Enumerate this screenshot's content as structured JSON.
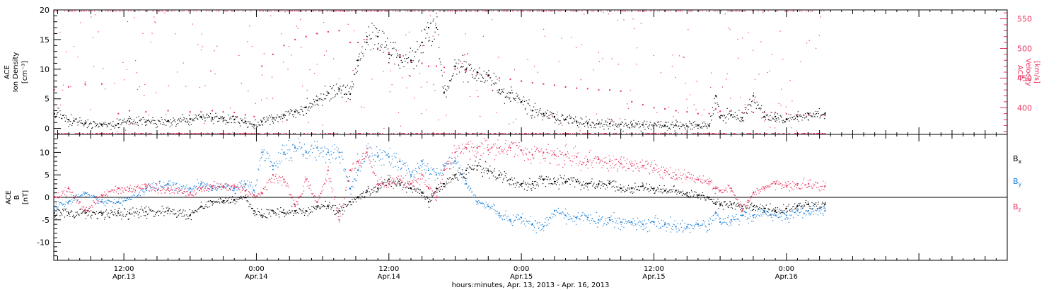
{
  "figure": {
    "xlabel": "hours:minutes, Apr. 13, 2013 - Apr. 16, 2013",
    "time_axis": {
      "unit": "hours since 2013-04-13 00:00",
      "xlim": [
        5.65,
        92.0
      ],
      "major_ticks": [
        {
          "t": 12,
          "time": "12:00",
          "date": "Apr.13"
        },
        {
          "t": 24,
          "time": "0:00",
          "date": "Apr.14"
        },
        {
          "t": 36,
          "time": "12:00",
          "date": "Apr.14"
        },
        {
          "t": 48,
          "time": "0:00",
          "date": "Apr.15"
        },
        {
          "t": 60,
          "time": "12:00",
          "date": "Apr.15"
        },
        {
          "t": 72,
          "time": "0:00",
          "date": "Apr.16"
        }
      ]
    }
  },
  "colors": {
    "black": "#000000",
    "pink": "#e8335f",
    "blue": "#1a7fd9"
  },
  "chart_data": [
    {
      "type": "scatter",
      "panel": "top",
      "ylabel_left": [
        "ACE",
        "Ion Density",
        "[cm⁻³]"
      ],
      "ylabel_right": [
        "ACE",
        "Velocity",
        "[km/s]"
      ],
      "ylim_left": [
        -1,
        20
      ],
      "yticks_left": [
        0,
        5,
        10,
        15,
        20
      ],
      "ylim_right": [
        355,
        565
      ],
      "yticks_right": [
        400,
        450,
        500,
        550
      ],
      "grid": false,
      "series": [
        {
          "name": "",
          "axis": "left",
          "color": "black",
          "x": [
            5.7,
            7,
            8.5,
            10,
            11.5,
            12.5,
            14,
            16,
            18,
            19,
            20,
            21,
            22,
            23,
            23.8,
            24.5,
            25.5,
            26.5,
            27.5,
            28.5,
            29.5,
            30.5,
            31.5,
            32.5,
            33.2,
            34,
            35,
            36,
            37,
            38,
            39,
            39.6,
            40.3,
            41,
            42,
            43,
            44,
            45,
            46,
            47,
            48,
            49,
            50,
            51,
            52,
            53,
            54,
            55,
            56,
            57,
            58,
            59,
            60,
            61,
            62,
            63,
            64,
            65,
            65.6,
            66,
            67,
            68,
            69,
            70,
            71,
            72,
            73,
            74,
            75.5
          ],
          "y": [
            2.5,
            1.5,
            0.9,
            0.7,
            0.8,
            1.2,
            1.1,
            1.2,
            1.6,
            2.0,
            1.8,
            1.7,
            1.5,
            1.2,
            0.6,
            1.2,
            1.8,
            2.3,
            2.8,
            3.6,
            4.7,
            6.0,
            6.6,
            5.8,
            11.5,
            14.5,
            15.5,
            12.5,
            12.0,
            11.5,
            14.5,
            17.0,
            17.0,
            6.0,
            10.5,
            10.0,
            9.5,
            9.0,
            6.5,
            6.0,
            4.5,
            3.0,
            2.5,
            2.0,
            1.5,
            1.2,
            0.9,
            0.8,
            0.8,
            0.7,
            0.6,
            0.6,
            0.5,
            0.5,
            0.5,
            0.4,
            0.5,
            0.5,
            5.5,
            1.8,
            2.3,
            1.8,
            5.5,
            2.0,
            2.0,
            1.5,
            2.0,
            2.5,
            2.5
          ]
        },
        {
          "name": "",
          "axis": "right",
          "color": "pink",
          "x": [
            5.7,
            7,
            8.5,
            10,
            11.5,
            12.5,
            14,
            16,
            18,
            19,
            20,
            21,
            22,
            23,
            23.8,
            24.5,
            25.5,
            26.5,
            27.5,
            28.5,
            29.5,
            30.5,
            31.5,
            32.5,
            33.2,
            34,
            35,
            36,
            37,
            38,
            39,
            39.6,
            40.3,
            41,
            42,
            43,
            44,
            45,
            46,
            47,
            48,
            49,
            50,
            51,
            52,
            53,
            54,
            55,
            56,
            57,
            58,
            59,
            60,
            61,
            62,
            63,
            64,
            65,
            65.6,
            66,
            67,
            68,
            69,
            70,
            71,
            72,
            73,
            74,
            75.5
          ],
          "y": [
            430,
            435,
            440,
            440,
            390,
            395,
            393,
            395,
            393,
            393,
            395,
            393,
            392,
            388,
            385,
            470,
            490,
            505,
            515,
            520,
            525,
            528,
            530,
            510,
            510,
            515,
            500,
            493,
            487,
            478,
            475,
            470,
            470,
            468,
            465,
            462,
            457,
            453,
            450,
            448,
            445,
            442,
            440,
            438,
            435,
            433,
            432,
            430,
            430,
            428,
            410,
            405,
            400,
            398,
            395,
            393,
            390,
            390,
            398,
            394,
            395,
            392,
            392,
            392,
            392,
            390,
            388,
            388,
            387
          ]
        }
      ]
    },
    {
      "type": "scatter",
      "panel": "bottom",
      "ylabel_left": [
        "ACE",
        "B",
        "[nT]"
      ],
      "ylim": [
        -14,
        14
      ],
      "yticks": [
        -10,
        -5,
        0,
        5,
        10
      ],
      "zero_line": 0,
      "grid": false,
      "series": [
        {
          "name": "Bx",
          "color": "black",
          "x": [
            5.7,
            7,
            8.5,
            10,
            11.5,
            12.5,
            14,
            16,
            18,
            19,
            20,
            21,
            22,
            23,
            23.8,
            24.5,
            25.5,
            26.5,
            27.5,
            28.5,
            29.5,
            30.5,
            31.5,
            32.5,
            33.2,
            34,
            35,
            36,
            37,
            38,
            39,
            39.6,
            40.3,
            41,
            42,
            43,
            44,
            45,
            46,
            47,
            48,
            49,
            50,
            51,
            52,
            53,
            54,
            55,
            56,
            57,
            58,
            59,
            60,
            61,
            62,
            63,
            64,
            65,
            65.6,
            66,
            67,
            68,
            69,
            70,
            71,
            72,
            73,
            74,
            75.5
          ],
          "y": [
            -3.5,
            -3.5,
            -3.5,
            -3.5,
            -3.5,
            -3.5,
            -3.2,
            -3.0,
            -4.0,
            -2.0,
            -1.0,
            -0.8,
            -0.5,
            0.0,
            -3.0,
            -4.0,
            -3.0,
            -3.5,
            -3.0,
            -3.0,
            -2.0,
            -2.0,
            -3.0,
            -1.0,
            0.0,
            1.5,
            2.0,
            4.0,
            3.0,
            2.0,
            1.0,
            -1.0,
            2.0,
            3.0,
            5.0,
            6.0,
            7.0,
            6.0,
            5.0,
            4.0,
            3.0,
            3.0,
            4.0,
            3.5,
            3.5,
            3.5,
            3.0,
            3.0,
            3.0,
            2.0,
            2.0,
            2.5,
            2.0,
            1.5,
            1.5,
            1.0,
            0.5,
            0.0,
            -1.5,
            -1.5,
            -1.5,
            -2.0,
            -2.0,
            -2.5,
            -3.0,
            -2.5,
            -2.0,
            -1.5,
            -1.5
          ]
        },
        {
          "name": "By",
          "color": "blue",
          "x": [
            5.7,
            7,
            8.5,
            10,
            11.5,
            12.5,
            14,
            16,
            18,
            19,
            20,
            21,
            22,
            23,
            23.8,
            24.5,
            25.5,
            26.5,
            27.5,
            28.5,
            29.5,
            30.5,
            31.5,
            32.5,
            33.2,
            34,
            35,
            36,
            37,
            38,
            39,
            39.6,
            40.3,
            41,
            42,
            43,
            44,
            45,
            46,
            47,
            48,
            49,
            50,
            51,
            52,
            53,
            54,
            55,
            56,
            57,
            58,
            59,
            60,
            61,
            62,
            63,
            64,
            65,
            65.6,
            66,
            67,
            68,
            69,
            70,
            71,
            72,
            73,
            74,
            75.5
          ],
          "y": [
            -2.0,
            -1.0,
            1.0,
            -1.0,
            -1.0,
            0.0,
            2.0,
            3.0,
            2.0,
            3.0,
            2.0,
            2.5,
            2.0,
            3.0,
            1.5,
            10.0,
            7.0,
            10.0,
            11.0,
            10.0,
            11.0,
            10.0,
            10.0,
            2.0,
            6.0,
            10.0,
            9.0,
            9.0,
            8.0,
            5.0,
            8.0,
            6.0,
            5.0,
            7.0,
            8.0,
            3.0,
            -1.0,
            -2.0,
            -3.5,
            -5.0,
            -4.5,
            -6.0,
            -6.5,
            -3.0,
            -4.0,
            -4.5,
            -4.5,
            -5.0,
            -5.0,
            -5.5,
            -5.5,
            -6.0,
            -5.5,
            -6.0,
            -6.5,
            -6.5,
            -6.0,
            -6.0,
            -3.5,
            -5.5,
            -5.0,
            -4.0,
            -4.0,
            -3.0,
            -4.0,
            -4.0,
            -3.0,
            -3.0,
            -3.0
          ]
        },
        {
          "name": "Bz",
          "color": "pink",
          "x": [
            5.7,
            7,
            8.5,
            10,
            11.5,
            12.5,
            14,
            16,
            18,
            19,
            20,
            21,
            22,
            23,
            23.8,
            24.5,
            25.5,
            26.5,
            27.5,
            28.5,
            29.5,
            30.5,
            31.5,
            32.5,
            33.2,
            34,
            35,
            36,
            37,
            38,
            39,
            39.6,
            40.3,
            41,
            42,
            43,
            44,
            45,
            46,
            47,
            48,
            49,
            50,
            51,
            52,
            53,
            54,
            55,
            56,
            57,
            58,
            59,
            60,
            61,
            62,
            63,
            64,
            65,
            65.6,
            66,
            67,
            68,
            69,
            70,
            71,
            72,
            73,
            74,
            75.5
          ],
          "y": [
            0.0,
            2.0,
            -3.0,
            0.5,
            2.0,
            2.0,
            2.5,
            2.0,
            1.0,
            2.0,
            2.5,
            2.5,
            2.5,
            1.5,
            0.5,
            1.0,
            5.0,
            4.0,
            -2.0,
            4.0,
            -1.0,
            6.0,
            -5.0,
            6.0,
            8.0,
            10.0,
            3.0,
            3.0,
            4.0,
            3.0,
            5.0,
            2.0,
            0.0,
            6.0,
            10.0,
            11.0,
            11.0,
            10.5,
            11.0,
            11.0,
            10.5,
            9.5,
            10.0,
            9.5,
            9.5,
            9.0,
            8.0,
            8.5,
            8.0,
            7.5,
            7.0,
            7.0,
            6.5,
            6.0,
            5.0,
            4.5,
            4.0,
            3.5,
            2.0,
            1.5,
            2.0,
            -3.0,
            1.0,
            2.0,
            3.0,
            2.5,
            3.0,
            3.0,
            2.5
          ]
        }
      ]
    }
  ]
}
